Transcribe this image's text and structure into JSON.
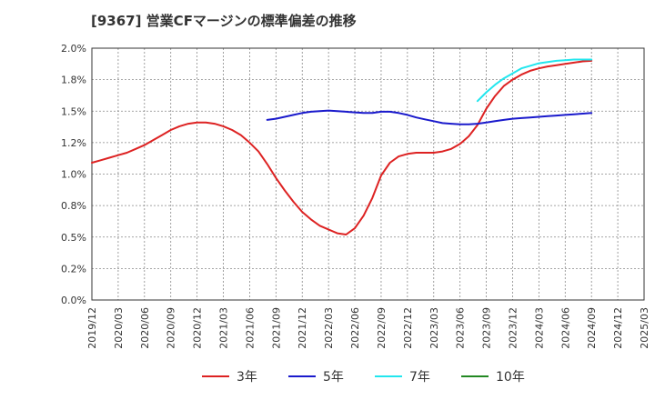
{
  "chart_data": {
    "type": "line",
    "title": "[9367]  営業CFマージンの標準偏差の推移",
    "xlabel": "",
    "ylabel": "",
    "x_ticks": [
      "2019/12",
      "2020/03",
      "2020/06",
      "2020/09",
      "2020/12",
      "2021/03",
      "2021/06",
      "2021/09",
      "2021/12",
      "2022/03",
      "2022/06",
      "2022/09",
      "2022/12",
      "2023/03",
      "2023/06",
      "2023/09",
      "2023/12",
      "2024/03",
      "2024/06",
      "2024/09",
      "2024/12",
      "2025/03"
    ],
    "y_ticks": [
      "0.0%",
      "0.2%",
      "0.5%",
      "0.8%",
      "1.0%",
      "1.2%",
      "1.5%",
      "1.8%",
      "2.0%"
    ],
    "ylim": [
      0,
      2.0
    ],
    "grid": true,
    "legend_position": "bottom",
    "series": [
      {
        "name": "3年",
        "color": "#dd2222",
        "values": [
          [
            "2019/12",
            1.09
          ],
          [
            "2020/01",
            1.11
          ],
          [
            "2020/02",
            1.13
          ],
          [
            "2020/03",
            1.15
          ],
          [
            "2020/04",
            1.17
          ],
          [
            "2020/05",
            1.2
          ],
          [
            "2020/06",
            1.23
          ],
          [
            "2020/07",
            1.27
          ],
          [
            "2020/08",
            1.31
          ],
          [
            "2020/09",
            1.35
          ],
          [
            "2020/10",
            1.38
          ],
          [
            "2020/11",
            1.4
          ],
          [
            "2020/12",
            1.41
          ],
          [
            "2021/01",
            1.41
          ],
          [
            "2021/02",
            1.4
          ],
          [
            "2021/03",
            1.38
          ],
          [
            "2021/04",
            1.35
          ],
          [
            "2021/05",
            1.31
          ],
          [
            "2021/06",
            1.25
          ],
          [
            "2021/07",
            1.18
          ],
          [
            "2021/08",
            1.08
          ],
          [
            "2021/09",
            0.97
          ],
          [
            "2021/10",
            0.87
          ],
          [
            "2021/11",
            0.78
          ],
          [
            "2021/12",
            0.7
          ],
          [
            "2022/01",
            0.64
          ],
          [
            "2022/02",
            0.59
          ],
          [
            "2022/03",
            0.56
          ],
          [
            "2022/04",
            0.53
          ],
          [
            "2022/05",
            0.52
          ],
          [
            "2022/06",
            0.57
          ],
          [
            "2022/07",
            0.67
          ],
          [
            "2022/08",
            0.81
          ],
          [
            "2022/09",
            0.99
          ],
          [
            "2022/10",
            1.09
          ],
          [
            "2022/11",
            1.14
          ],
          [
            "2022/12",
            1.16
          ],
          [
            "2023/01",
            1.17
          ],
          [
            "2023/02",
            1.17
          ],
          [
            "2023/03",
            1.17
          ],
          [
            "2023/04",
            1.18
          ],
          [
            "2023/05",
            1.2
          ],
          [
            "2023/06",
            1.24
          ],
          [
            "2023/07",
            1.3
          ],
          [
            "2023/08",
            1.39
          ],
          [
            "2023/09",
            1.52
          ],
          [
            "2023/10",
            1.62
          ],
          [
            "2023/11",
            1.7
          ],
          [
            "2023/12",
            1.75
          ],
          [
            "2024/01",
            1.79
          ],
          [
            "2024/02",
            1.82
          ],
          [
            "2024/03",
            1.84
          ],
          [
            "2024/04",
            1.855
          ],
          [
            "2024/05",
            1.865
          ],
          [
            "2024/06",
            1.875
          ],
          [
            "2024/07",
            1.885
          ],
          [
            "2024/08",
            1.895
          ],
          [
            "2024/09",
            1.9
          ]
        ]
      },
      {
        "name": "5年",
        "color": "#1a1acc",
        "values": [
          [
            "2021/08",
            1.43
          ],
          [
            "2021/09",
            1.44
          ],
          [
            "2021/10",
            1.455
          ],
          [
            "2021/11",
            1.47
          ],
          [
            "2021/12",
            1.485
          ],
          [
            "2022/01",
            1.495
          ],
          [
            "2022/02",
            1.5
          ],
          [
            "2022/03",
            1.505
          ],
          [
            "2022/04",
            1.5
          ],
          [
            "2022/05",
            1.495
          ],
          [
            "2022/06",
            1.49
          ],
          [
            "2022/07",
            1.485
          ],
          [
            "2022/08",
            1.485
          ],
          [
            "2022/09",
            1.495
          ],
          [
            "2022/10",
            1.495
          ],
          [
            "2022/11",
            1.485
          ],
          [
            "2022/12",
            1.47
          ],
          [
            "2023/01",
            1.45
          ],
          [
            "2023/02",
            1.435
          ],
          [
            "2023/03",
            1.42
          ],
          [
            "2023/04",
            1.405
          ],
          [
            "2023/05",
            1.4
          ],
          [
            "2023/06",
            1.395
          ],
          [
            "2023/07",
            1.395
          ],
          [
            "2023/08",
            1.4
          ],
          [
            "2023/09",
            1.41
          ],
          [
            "2023/10",
            1.42
          ],
          [
            "2023/11",
            1.43
          ],
          [
            "2023/12",
            1.44
          ],
          [
            "2024/01",
            1.445
          ],
          [
            "2024/02",
            1.45
          ],
          [
            "2024/03",
            1.455
          ],
          [
            "2024/04",
            1.46
          ],
          [
            "2024/05",
            1.465
          ],
          [
            "2024/06",
            1.47
          ],
          [
            "2024/07",
            1.475
          ],
          [
            "2024/08",
            1.48
          ],
          [
            "2024/09",
            1.485
          ]
        ]
      },
      {
        "name": "7年",
        "color": "#22e6ee",
        "values": [
          [
            "2023/08",
            1.58
          ],
          [
            "2023/09",
            1.65
          ],
          [
            "2023/10",
            1.71
          ],
          [
            "2023/11",
            1.76
          ],
          [
            "2023/12",
            1.8
          ],
          [
            "2024/01",
            1.84
          ],
          [
            "2024/02",
            1.86
          ],
          [
            "2024/03",
            1.88
          ],
          [
            "2024/04",
            1.89
          ],
          [
            "2024/05",
            1.9
          ],
          [
            "2024/06",
            1.905
          ],
          [
            "2024/07",
            1.91
          ],
          [
            "2024/08",
            1.91
          ],
          [
            "2024/09",
            1.91
          ]
        ]
      },
      {
        "name": "10年",
        "color": "#228822",
        "values": []
      }
    ]
  }
}
